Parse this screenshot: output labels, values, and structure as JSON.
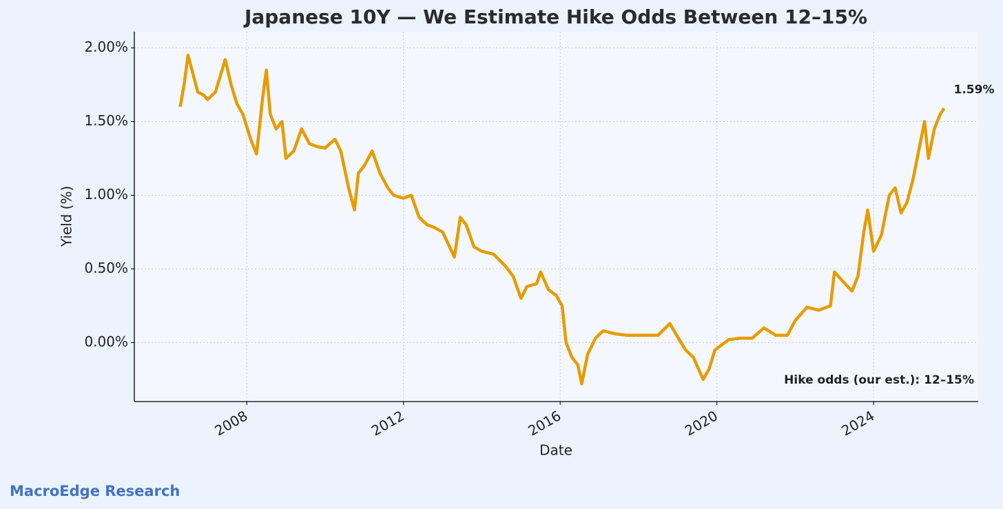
{
  "chart_data": {
    "type": "line",
    "title": "Japanese 10Y — We Estimate Hike Odds Between 12–15%",
    "xlabel": "Date",
    "ylabel": "Yield (%)",
    "x": [
      2006.3,
      2006.4,
      2006.5,
      2006.6,
      2006.75,
      2006.9,
      2007.0,
      2007.2,
      2007.45,
      2007.6,
      2007.75,
      2007.9,
      2008.1,
      2008.25,
      2008.4,
      2008.5,
      2008.6,
      2008.75,
      2008.9,
      2009.0,
      2009.2,
      2009.4,
      2009.6,
      2009.8,
      2010.0,
      2010.25,
      2010.4,
      2010.6,
      2010.75,
      2010.85,
      2011.0,
      2011.2,
      2011.4,
      2011.6,
      2011.75,
      2012.0,
      2012.2,
      2012.4,
      2012.6,
      2012.8,
      2013.0,
      2013.3,
      2013.45,
      2013.6,
      2013.8,
      2014.0,
      2014.3,
      2014.6,
      2014.8,
      2015.0,
      2015.15,
      2015.4,
      2015.5,
      2015.7,
      2015.9,
      2016.05,
      2016.15,
      2016.3,
      2016.45,
      2016.55,
      2016.7,
      2016.9,
      2017.1,
      2017.4,
      2017.7,
      2017.9,
      2018.2,
      2018.5,
      2018.8,
      2018.95,
      2019.2,
      2019.4,
      2019.65,
      2019.8,
      2019.95,
      2020.1,
      2020.3,
      2020.6,
      2020.9,
      2021.2,
      2021.5,
      2021.8,
      2022.0,
      2022.3,
      2022.6,
      2022.9,
      2023.0,
      2023.2,
      2023.45,
      2023.6,
      2023.75,
      2023.85,
      2024.0,
      2024.2,
      2024.4,
      2024.55,
      2024.7,
      2024.85,
      2025.0,
      2025.15,
      2025.3,
      2025.4,
      2025.55,
      2025.7,
      2025.8
    ],
    "series": [
      {
        "name": "Japanese 10Y",
        "color": "#e69c00",
        "values": [
          1.6,
          1.75,
          1.95,
          1.85,
          1.7,
          1.68,
          1.65,
          1.7,
          1.92,
          1.75,
          1.62,
          1.55,
          1.38,
          1.28,
          1.65,
          1.85,
          1.55,
          1.45,
          1.5,
          1.25,
          1.3,
          1.45,
          1.35,
          1.33,
          1.32,
          1.38,
          1.3,
          1.05,
          0.9,
          1.15,
          1.2,
          1.3,
          1.15,
          1.05,
          1.0,
          0.98,
          1.0,
          0.85,
          0.8,
          0.78,
          0.75,
          0.58,
          0.85,
          0.8,
          0.65,
          0.62,
          0.6,
          0.52,
          0.45,
          0.3,
          0.38,
          0.4,
          0.48,
          0.36,
          0.32,
          0.25,
          0.0,
          -0.1,
          -0.15,
          -0.28,
          -0.08,
          0.03,
          0.08,
          0.06,
          0.05,
          0.05,
          0.05,
          0.05,
          0.13,
          0.06,
          -0.05,
          -0.1,
          -0.25,
          -0.18,
          -0.05,
          -0.02,
          0.02,
          0.03,
          0.03,
          0.1,
          0.05,
          0.05,
          0.15,
          0.24,
          0.22,
          0.25,
          0.48,
          0.42,
          0.35,
          0.45,
          0.75,
          0.9,
          0.62,
          0.73,
          1.0,
          1.05,
          0.88,
          0.95,
          1.1,
          1.3,
          1.5,
          1.25,
          1.45,
          1.55,
          1.59
        ]
      }
    ],
    "xlim": [
      2005.13,
      2026.67
    ],
    "xticks": [
      2008,
      2012,
      2016,
      2020,
      2024
    ],
    "ylim": [
      -0.4,
      2.11
    ],
    "yticks": [
      {
        "value": 0,
        "label": "0.00%"
      },
      {
        "value": 0.5,
        "label": "0.50%"
      },
      {
        "value": 1,
        "label": "1.00%"
      },
      {
        "value": 1.5,
        "label": "1.50%"
      },
      {
        "value": 2,
        "label": "2.00%"
      }
    ],
    "grid": true,
    "last_value_label": "1.59%",
    "annotation": "Hike odds (our est.): 12–15%",
    "source": "MacroEdge Research"
  }
}
